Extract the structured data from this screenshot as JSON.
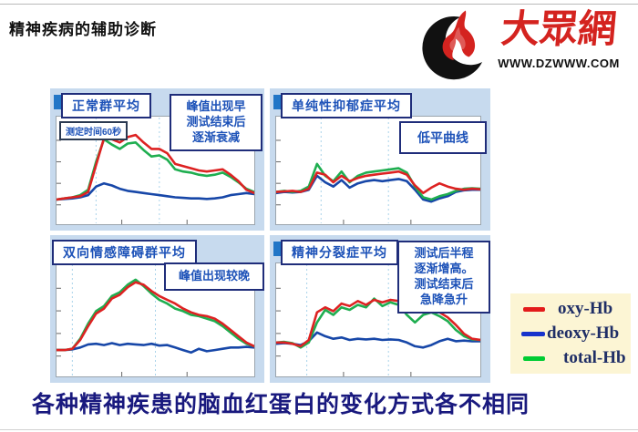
{
  "slide": {
    "title": "精神疾病的辅助诊断",
    "caption": "各种精神疾患的脑血红蛋白的变化方式各不相同"
  },
  "logo": {
    "brand": "大眾網",
    "url": "WWW.DZWWW.COM",
    "flame_color": "#d4231f",
    "crescent_color": "#111111"
  },
  "panels": [
    {
      "title": "正常群平均",
      "note": "峰值出现早\n测试结束后\n逐渐衰减",
      "timebox": "测定时间60秒"
    },
    {
      "title": "单纯性抑郁症平均",
      "note": "低平曲线"
    },
    {
      "title": "双向情感障碍群平均",
      "note": "峰值出现较晚"
    },
    {
      "title": "精神分裂症平均",
      "note": "测试后半程\n逐渐增高。\n测试结束后\n急降急升"
    }
  ],
  "legend": {
    "items": [
      {
        "label": "oxy-Hb",
        "color": "#e31b1b"
      },
      {
        "label": "deoxy-Hb",
        "color": "#1733cc"
      },
      {
        "label": "total-Hb",
        "color": "#00cc33"
      }
    ]
  },
  "chart_data": {
    "type": "line",
    "x_label": "time (measurement 60 s)",
    "x_pct": [
      0,
      4,
      8,
      12,
      16,
      20,
      24,
      28,
      32,
      36,
      40,
      44,
      48,
      52,
      56,
      60,
      64,
      68,
      72,
      76,
      80,
      84,
      88,
      92,
      96,
      100
    ],
    "y_ticks_pct": [
      22,
      42,
      62,
      82
    ],
    "x_ticks_pct": [
      33,
      66
    ],
    "guide_color": "#a9d3ea",
    "panels": [
      {
        "title": "正常群平均",
        "ylim": [
          -2,
          8
        ],
        "guides_x_pct": [
          20,
          52
        ],
        "series": [
          {
            "name": "deoxy-Hb",
            "color": "#1747a8",
            "values": [
              0.3,
              0.35,
              0.4,
              0.5,
              0.7,
              1.5,
              1.8,
              1.6,
              1.3,
              1.1,
              1.0,
              0.9,
              0.8,
              0.7,
              0.6,
              0.5,
              0.45,
              0.4,
              0.4,
              0.35,
              0.4,
              0.5,
              0.7,
              0.8,
              0.9,
              0.8
            ]
          },
          {
            "name": "total-Hb",
            "color": "#1fae50",
            "values": [
              0.3,
              0.4,
              0.5,
              0.7,
              1.2,
              3.8,
              5.9,
              5.4,
              5.0,
              5.5,
              5.6,
              4.9,
              4.3,
              4.4,
              4.0,
              3.1,
              2.9,
              2.8,
              2.6,
              2.5,
              2.6,
              2.8,
              2.4,
              1.9,
              1.3,
              1.0
            ]
          },
          {
            "name": "oxy-Hb",
            "color": "#dd2222",
            "values": [
              0.3,
              0.4,
              0.5,
              0.6,
              1.0,
              3.5,
              6.0,
              5.9,
              5.6,
              6.1,
              6.3,
              5.6,
              5.0,
              5.0,
              4.6,
              3.6,
              3.4,
              3.2,
              3.0,
              2.9,
              3.0,
              3.1,
              2.6,
              2.0,
              1.2,
              0.9
            ]
          }
        ]
      },
      {
        "title": "单纯性抑郁症平均",
        "ylim": [
          -3,
          7
        ],
        "guides_x_pct": [
          22,
          55
        ],
        "series": [
          {
            "name": "deoxy-Hb",
            "color": "#1747a8",
            "values": [
              -0.1,
              0.0,
              -0.05,
              0.0,
              0.2,
              1.5,
              0.9,
              0.5,
              1.1,
              0.4,
              0.8,
              1.0,
              1.1,
              1.0,
              1.1,
              1.2,
              1.0,
              0.2,
              -0.7,
              -0.9,
              -0.6,
              -0.4,
              0.0,
              0.15,
              0.2,
              0.2
            ]
          },
          {
            "name": "total-Hb",
            "color": "#1fae50",
            "values": [
              0.0,
              0.1,
              0.0,
              0.1,
              0.5,
              2.6,
              1.5,
              1.0,
              1.9,
              0.9,
              1.5,
              1.8,
              1.9,
              2.0,
              2.1,
              2.2,
              1.8,
              0.5,
              -0.5,
              -0.7,
              -0.4,
              -0.2,
              0.1,
              0.3,
              0.35,
              0.3
            ]
          },
          {
            "name": "oxy-Hb",
            "color": "#dd2222",
            "values": [
              0.0,
              0.05,
              0.1,
              0.0,
              0.3,
              1.8,
              1.6,
              0.9,
              1.5,
              1.0,
              1.3,
              1.5,
              1.6,
              1.7,
              1.8,
              1.9,
              1.6,
              0.6,
              -0.1,
              0.4,
              0.8,
              0.5,
              0.3,
              0.2,
              0.3,
              0.25
            ]
          }
        ]
      },
      {
        "title": "双向情感障碍群平均",
        "ylim": [
          -2,
          7
        ],
        "guides_x_pct": [
          8,
          50
        ],
        "series": [
          {
            "name": "deoxy-Hb",
            "color": "#1747a8",
            "values": [
              0.1,
              0.1,
              0.15,
              0.3,
              0.55,
              0.6,
              0.5,
              0.65,
              0.5,
              0.6,
              0.55,
              0.5,
              0.6,
              0.45,
              0.5,
              0.3,
              0.1,
              -0.1,
              0.2,
              0.0,
              0.1,
              0.2,
              0.3,
              0.3,
              0.35,
              0.3
            ]
          },
          {
            "name": "total-Hb",
            "color": "#1fae50",
            "values": [
              0.1,
              0.1,
              0.2,
              1.0,
              2.2,
              3.2,
              3.6,
              4.4,
              4.7,
              5.3,
              5.7,
              5.2,
              4.6,
              4.1,
              3.8,
              3.4,
              3.2,
              2.9,
              2.8,
              2.6,
              2.4,
              2.0,
              1.5,
              1.0,
              0.6,
              0.4
            ]
          },
          {
            "name": "oxy-Hb",
            "color": "#dd2222",
            "values": [
              0.1,
              0.1,
              0.2,
              0.9,
              2.0,
              3.0,
              3.4,
              4.2,
              4.5,
              5.1,
              5.5,
              5.3,
              4.8,
              4.4,
              4.1,
              3.8,
              3.4,
              3.1,
              2.9,
              2.8,
              2.6,
              2.2,
              1.7,
              1.2,
              0.7,
              0.4
            ]
          }
        ]
      },
      {
        "title": "精神分裂症平均",
        "ylim": [
          -2.5,
          6.5
        ],
        "guides_x_pct": [
          15,
          55
        ],
        "series": [
          {
            "name": "deoxy-Hb",
            "color": "#1747a8",
            "values": [
              0.1,
              0.15,
              0.1,
              0.0,
              0.3,
              1.0,
              0.7,
              0.5,
              0.6,
              0.4,
              0.5,
              0.45,
              0.5,
              0.4,
              0.45,
              0.4,
              0.2,
              -0.1,
              -0.2,
              0.0,
              0.3,
              0.5,
              0.3,
              0.35,
              0.3,
              0.3
            ]
          },
          {
            "name": "total-Hb",
            "color": "#1fae50",
            "values": [
              0.2,
              0.25,
              0.15,
              -0.2,
              0.2,
              1.8,
              2.8,
              2.4,
              3.0,
              2.8,
              3.2,
              3.0,
              3.7,
              3.1,
              3.4,
              3.2,
              2.4,
              1.8,
              2.4,
              2.6,
              2.3,
              1.9,
              1.2,
              0.7,
              0.45,
              0.4
            ]
          },
          {
            "name": "oxy-Hb",
            "color": "#dd2222",
            "values": [
              0.2,
              0.2,
              0.1,
              -0.1,
              0.4,
              2.6,
              3.0,
              2.7,
              3.3,
              3.1,
              3.5,
              3.2,
              3.6,
              3.4,
              3.6,
              3.5,
              3.0,
              2.6,
              2.9,
              3.0,
              2.6,
              2.2,
              1.6,
              0.9,
              0.5,
              0.4
            ]
          }
        ]
      }
    ]
  }
}
